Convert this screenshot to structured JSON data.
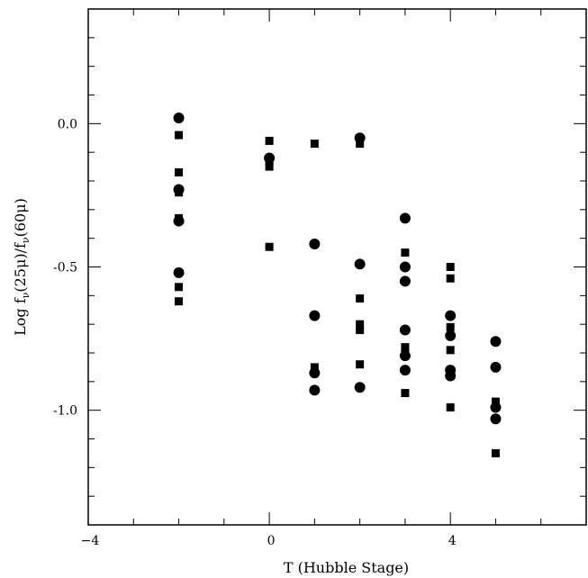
{
  "chart_data": {
    "type": "scatter",
    "title": "",
    "xlabel": "T (Hubble Stage)",
    "ylabel_parts": {
      "prefix": "Log  f",
      "sub1": "ν",
      "mid": "(25μ)/f",
      "sub2": "ν",
      "suffix": "(60μ)"
    },
    "xlim": [
      -4,
      7
    ],
    "ylim": [
      -1.4,
      0.4
    ],
    "x_ticks": [
      {
        "value": -4,
        "label": "−4"
      },
      {
        "value": 0,
        "label": "0"
      },
      {
        "value": 4,
        "label": "4"
      }
    ],
    "y_ticks": [
      {
        "value": 0.0,
        "label": "0.0"
      },
      {
        "value": -0.5,
        "label": "-0.5"
      },
      {
        "value": -1.0,
        "label": "-1.0"
      }
    ],
    "x_minor_step": 1,
    "y_minor_step": 0.1,
    "grid": false,
    "color": "#000000",
    "series": [
      {
        "marker": "circle",
        "points": [
          [
            -2,
            0.02
          ],
          [
            -2,
            -0.23
          ],
          [
            -2,
            -0.34
          ],
          [
            -2,
            -0.52
          ],
          [
            0,
            -0.12
          ],
          [
            1,
            -0.42
          ],
          [
            1,
            -0.67
          ],
          [
            1,
            -0.87
          ],
          [
            1,
            -0.93
          ],
          [
            2,
            -0.05
          ],
          [
            2,
            -0.49
          ],
          [
            2,
            -0.92
          ],
          [
            3,
            -0.33
          ],
          [
            3,
            -0.5
          ],
          [
            3,
            -0.55
          ],
          [
            3,
            -0.72
          ],
          [
            3,
            -0.81
          ],
          [
            3,
            -0.86
          ],
          [
            4,
            -0.67
          ],
          [
            4,
            -0.74
          ],
          [
            4,
            -0.86
          ],
          [
            4,
            -0.88
          ],
          [
            5,
            -0.76
          ],
          [
            5,
            -0.85
          ],
          [
            5,
            -0.99
          ],
          [
            5,
            -1.03
          ]
        ]
      },
      {
        "marker": "square",
        "points": [
          [
            -2,
            -0.04
          ],
          [
            -2,
            -0.17
          ],
          [
            -2,
            -0.24
          ],
          [
            -2,
            -0.33
          ],
          [
            -2,
            -0.57
          ],
          [
            -2,
            -0.62
          ],
          [
            0,
            -0.06
          ],
          [
            0,
            -0.13
          ],
          [
            0,
            -0.15
          ],
          [
            0,
            -0.43
          ],
          [
            1,
            -0.07
          ],
          [
            1,
            -0.85
          ],
          [
            2,
            -0.07
          ],
          [
            2,
            -0.61
          ],
          [
            2,
            -0.7
          ],
          [
            2,
            -0.72
          ],
          [
            2,
            -0.84
          ],
          [
            3,
            -0.45
          ],
          [
            3,
            -0.78
          ],
          [
            3,
            -0.8
          ],
          [
            3,
            -0.94
          ],
          [
            4,
            -0.5
          ],
          [
            4,
            -0.54
          ],
          [
            4,
            -0.71
          ],
          [
            4,
            -0.79
          ],
          [
            4,
            -0.99
          ],
          [
            5,
            -0.97
          ],
          [
            5,
            -1.15
          ]
        ]
      }
    ]
  }
}
